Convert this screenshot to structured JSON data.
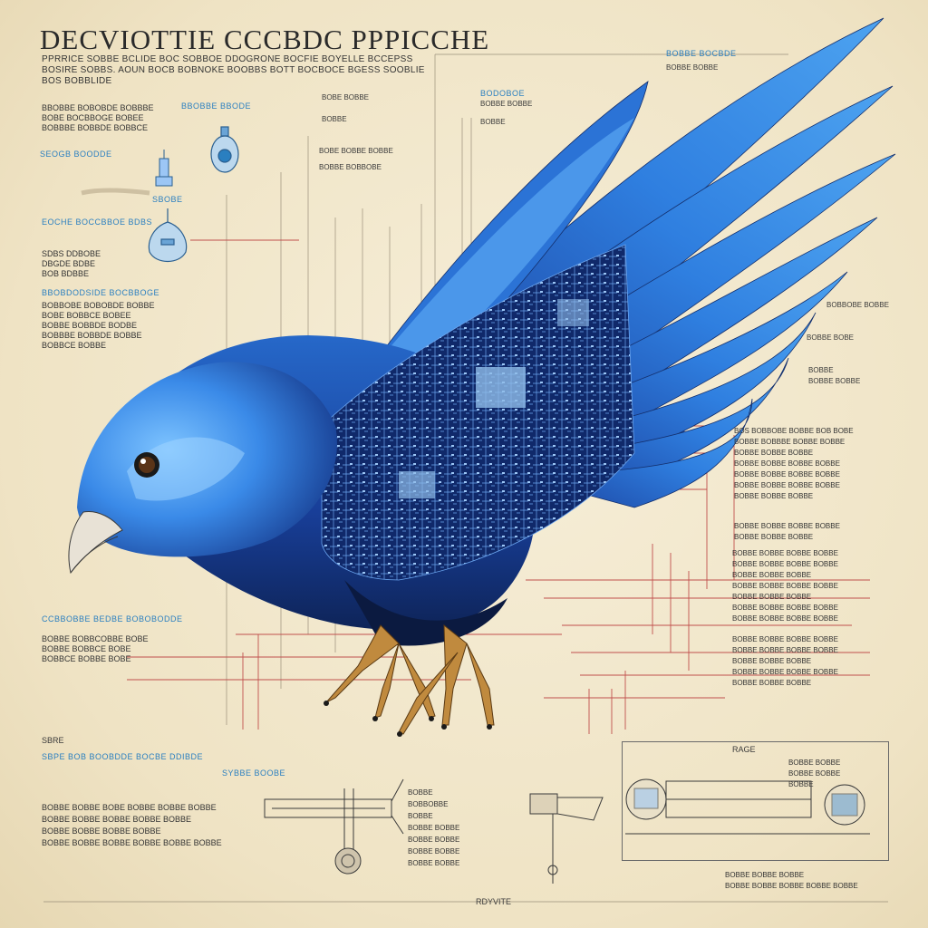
{
  "poster": {
    "title": "DECVIOTTIE CCCBDC PPPICCHE",
    "subtitle_lines": [
      "PPRRICE  SOBBE  BCLIDE  BOC  SOBBOE  DDOGRONE  BOCFIE  BOYELLE  BCCEPSS",
      "BOSIRE  SOBBS.  AOUN  BOCB  BOBNOKE  BOOBBS  BOTT  BOCBOCE  BGESS  SOOBLIE",
      "BOS  BOBBLIDE"
    ],
    "colors": {
      "paper": "#f2e8cf",
      "bird_blue": "#2f7fe0",
      "bird_dark": "#14306e",
      "leader_red": "#c0504d",
      "label_blue": "#2a7fc0",
      "ink": "#2a2a2a",
      "claw_gold": "#c08a3e"
    },
    "left_labels": [
      {
        "text": "BBOBBE BBODE",
        "style": "blue"
      },
      {
        "text": "SEOGB BOODDE",
        "style": "blue"
      },
      {
        "text": "SBOBE",
        "style": "blue"
      },
      {
        "text": "EOCHE BOCCBBOE BDBS",
        "style": "blue"
      },
      {
        "text": "BBOBDODSIDE BOCBBOGE",
        "style": "blue"
      },
      {
        "text": "CCBBOBBE BEDBE BOBOBODDE",
        "style": "blue"
      },
      {
        "text": "SBRE",
        "style": "ink"
      },
      {
        "text": "SBPE  BOB BOOBDDE BOCBE DDIBDE",
        "style": "blue"
      },
      {
        "text": "SYBBE BOOBE",
        "style": "blue"
      },
      {
        "text": "RDYVITE",
        "style": "ink"
      }
    ],
    "left_block_1": [
      "BBOBBE  BOBOBDE  BOBBBE",
      "BOBE  BOCBBOGE  BOBEE",
      "BOBBBE  BOBBDE  BOBBCE"
    ],
    "left_block_2": [
      "SDBS  DDBOBE",
      "DBGDE  BDBE",
      "BOB  BDBBE"
    ],
    "left_block_3": [
      "BOBBOBE  BOBOBDE  BOBBE",
      "BOBE  BOBBCE  BOBEE",
      "BOBBE  BOBBDE  BODBE",
      "BOBBBE  BOBBDE  BOBBE",
      "BOBBCE  BOBBE"
    ],
    "left_block_4": [
      "BOBBE  BOBBCOBBE  BOBE",
      "BOBBE  BOBBCE  BOBE",
      "BOBBCE  BOBBE  BOBE"
    ],
    "bottom_left_block": [
      "BOBBE  BOBBE  BOBE  BOBBE  BOBBE  BOBBE",
      "BOBBE  BOBBE  BOBBE  BOBBE  BOBBE",
      "BOBBE  BOBBE  BOBBE  BOBBE",
      "BOBBE  BOBBE  BOBBE  BOBBE  BOBBE  BOBBE"
    ],
    "top_mid_labels": [
      "BOBE  BOBBE",
      "BOBBE",
      "BOBE  BOBBE  BOBBE",
      "BOBBE  BOBBOBE",
      "BODOBOE",
      "BOBBE  BOBBE",
      "BOBBE"
    ],
    "right_labels": [
      {
        "text": "BOBBE  BOCBDE",
        "style": "blue"
      },
      {
        "text": "BOBBE  BOBBE",
        "style": "ink"
      },
      {
        "text": "BOBBOBE  BOBBE",
        "style": "ink"
      },
      {
        "text": "BOBBE  BOBE",
        "style": "ink"
      },
      {
        "text": "BOBBE",
        "style": "ink"
      },
      {
        "text": "BOBBE  BOBBE",
        "style": "ink"
      }
    ],
    "right_block_1": [
      "BOS  BOBBOBE  BOBBE  BOB  BOBE",
      "BOBBE  BOBBBE  BOBBE  BOBBE",
      "BOBBE  BOBBE  BOBBE",
      "BOBBE  BOBBE  BOBBE  BOBBE",
      "BOBBE  BOBBE  BOBBE  BOBBE",
      "BOBBE  BOBBE  BOBBE  BOBBE",
      "BOBBE  BOBBE  BOBBE"
    ],
    "right_block_2": [
      "BOBBE  BOBBE  BOBBE  BOBBE",
      "BOBBE  BOBBE  BOBBE"
    ],
    "right_block_3": [
      "BOBBE  BOBBE  BOBBE  BOBBE",
      "BOBBE  BOBBE  BOBBE  BOBBE",
      "BOBBE  BOBBE  BOBBE",
      "BOBBE  BOBBE  BOBBE  BOBBE",
      "BOBBE  BOBBE  BOBBE",
      "BOBBE  BOBBE  BOBBE  BOBBE",
      "BOBBE  BOBBE  BOBBE  BOBBE"
    ],
    "right_block_4": [
      "BOBBE  BOBBE  BOBBE  BOBBE",
      "BOBBE  BOBBE  BOBBE  BOBBE",
      "BOBBE  BOBBE  BOBBE",
      "BOBBE  BOBBE  BOBBE  BOBBE",
      "BOBBE  BOBBE  BOBBE"
    ],
    "bottom_mid_block": [
      "BOBBE",
      "BOBBOBBE",
      "BOBBE",
      "BOBBE  BOBBE",
      "BOBBE  BOBBE",
      "BOBBE  BOBBE",
      "BOBBE  BOBBE"
    ],
    "bottom_right_label": "RAGE",
    "bottom_right_block": [
      "BOBBE  BOBBE",
      "BOBBE  BOBBE",
      "BOBBE",
      "BOBBE  BOBBE  BOBBE",
      "BOBBE  BOBBE  BOBBE  BOBBE  BOBBE"
    ],
    "icons": [
      "bird-illustration",
      "circuit-board-icon",
      "pendant-device-icon",
      "lamp-device-icon",
      "tower-device-icon",
      "mechanical-arm-icon",
      "turbine-device-icon"
    ]
  }
}
